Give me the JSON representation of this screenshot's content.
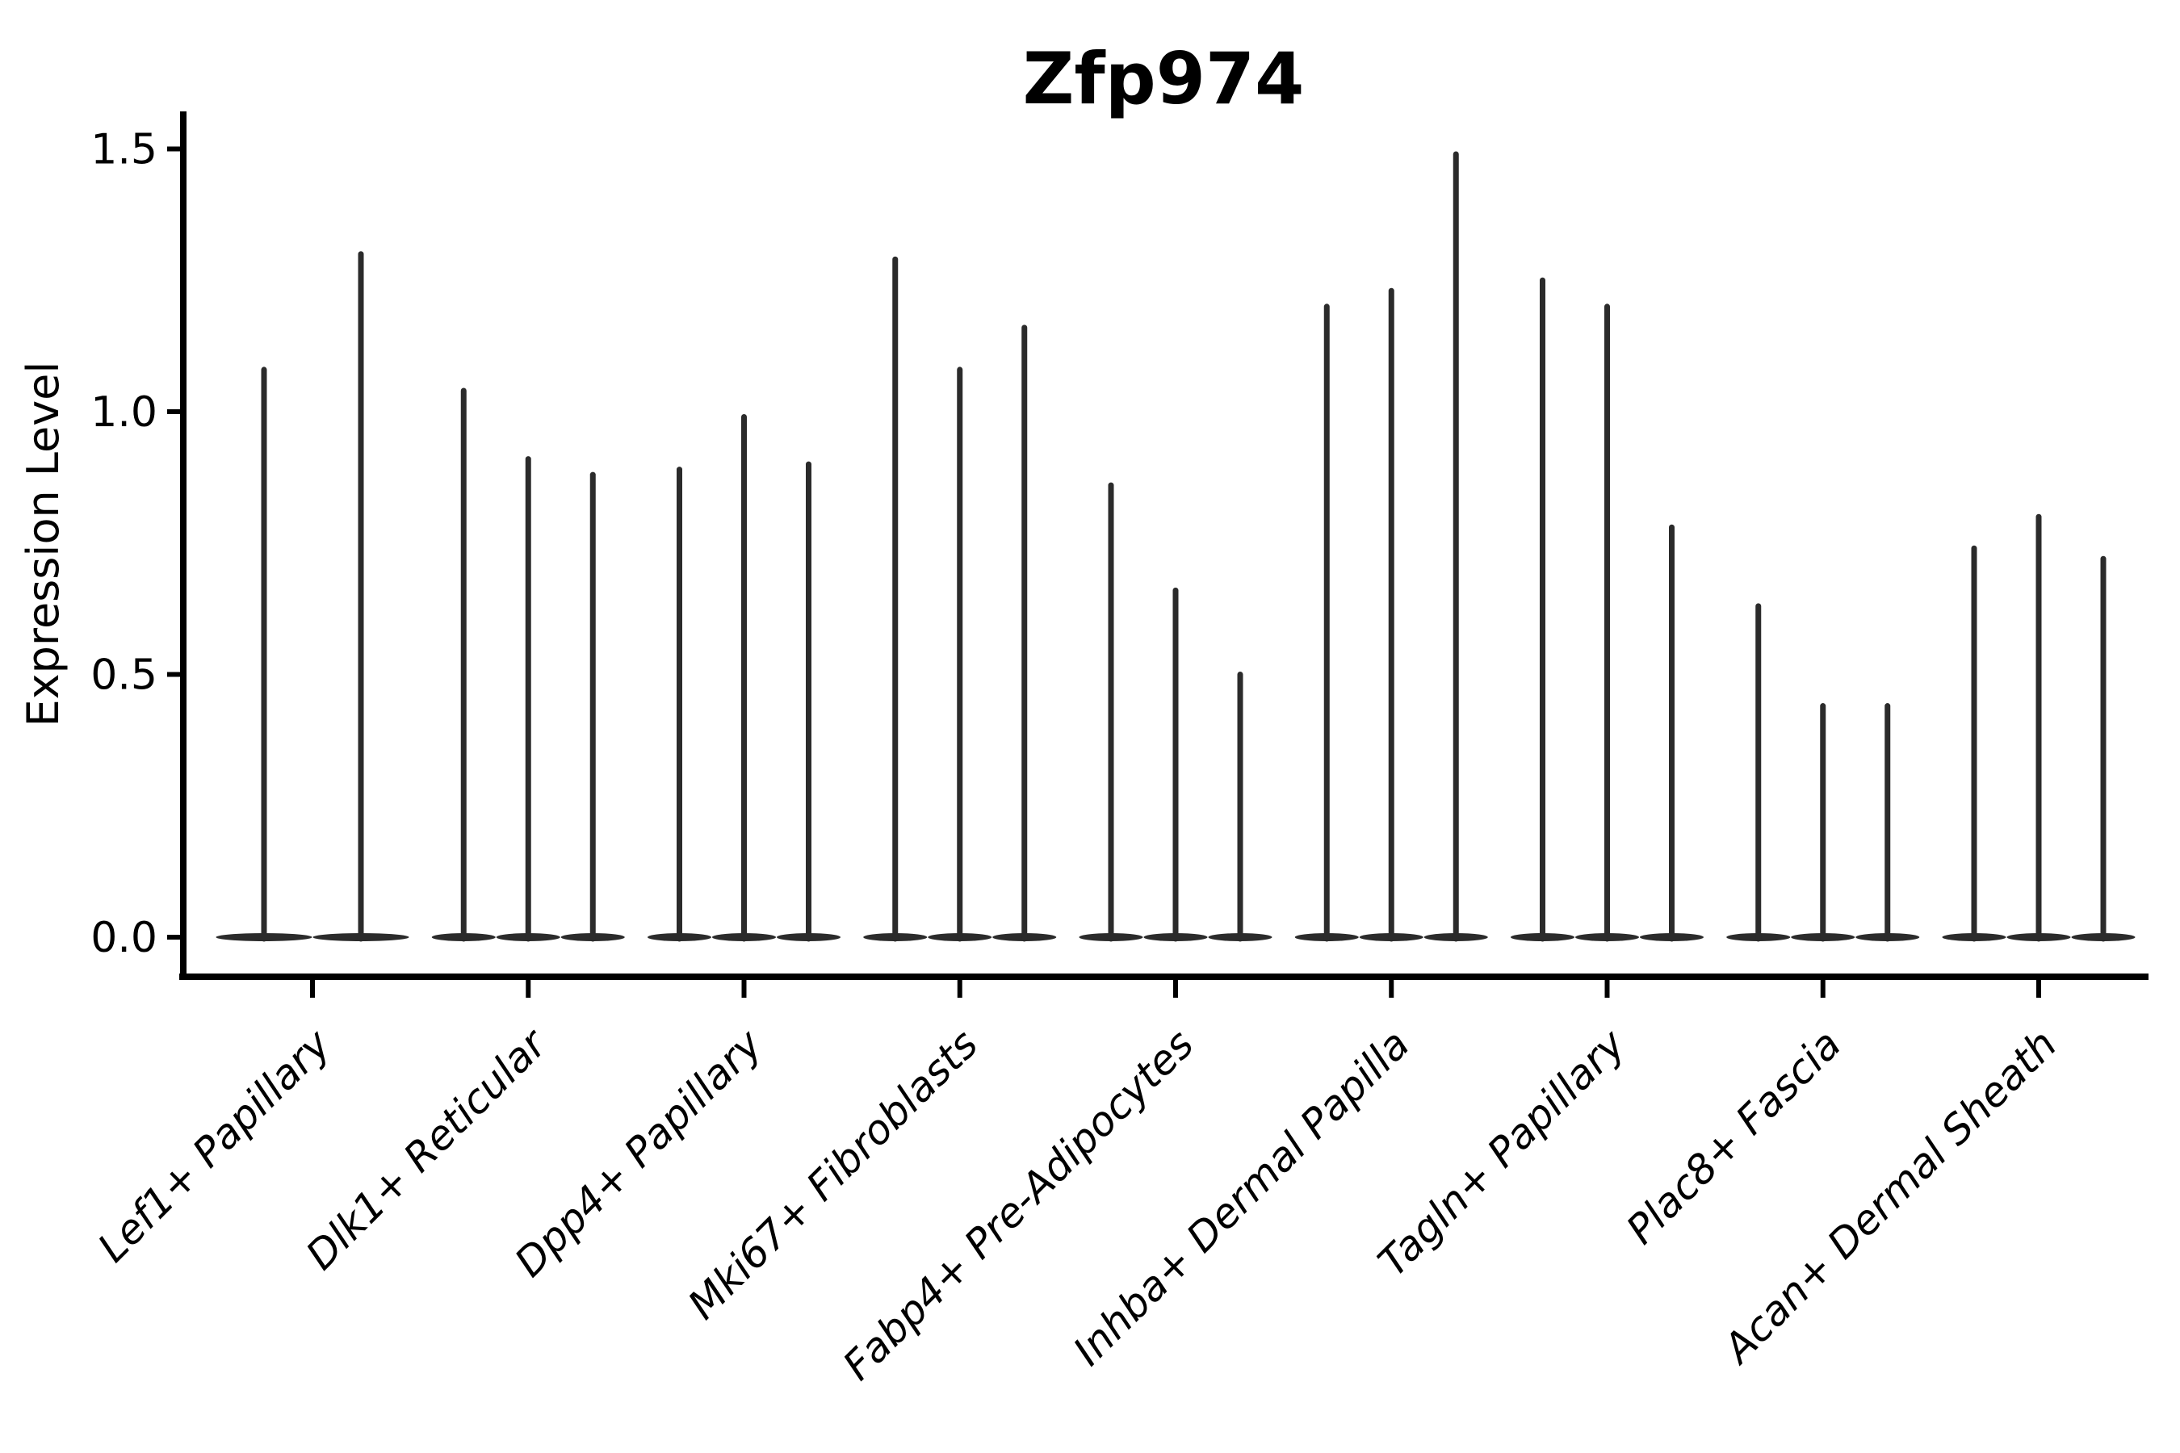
{
  "chart_data": {
    "type": "violin",
    "title": "Zfp974",
    "ylabel": "Expression Level",
    "xlabel": "",
    "ylim": [
      0,
      1.55
    ],
    "ytick_labels": [
      "0.0",
      "0.5",
      "1.0",
      "1.5"
    ],
    "ytick_values": [
      0.0,
      0.5,
      1.0,
      1.5
    ],
    "grid": false,
    "legend_position": "none",
    "violin_style": "thin-spike-with-zero-density-base",
    "violin_color": "#2b2b2b",
    "axis_color": "#000000",
    "groups": [
      {
        "label": "Lef1+ Papillary",
        "violin_maxima": [
          1.08,
          1.3
        ]
      },
      {
        "label": "Dlk1+ Reticular",
        "violin_maxima": [
          1.04,
          0.91,
          0.88
        ]
      },
      {
        "label": "Dpp4+ Papillary",
        "violin_maxima": [
          0.89,
          0.99,
          0.9
        ]
      },
      {
        "label": "Mki67+ Fibroblasts",
        "violin_maxima": [
          1.29,
          1.08,
          1.16
        ]
      },
      {
        "label": "Fabp4+ Pre-Adipocytes",
        "violin_maxima": [
          0.86,
          0.66,
          0.5
        ]
      },
      {
        "label": "Inhba+ Dermal Papilla",
        "violin_maxima": [
          1.2,
          1.23,
          1.49
        ]
      },
      {
        "label": "Tagln+ Papillary",
        "violin_maxima": [
          1.25,
          1.2,
          0.78
        ]
      },
      {
        "label": "Plac8+ Fascia",
        "violin_maxima": [
          0.63,
          0.44,
          0.44
        ]
      },
      {
        "label": "Acan+ Dermal Sheath",
        "violin_maxima": [
          0.74,
          0.8,
          0.72
        ]
      }
    ]
  }
}
